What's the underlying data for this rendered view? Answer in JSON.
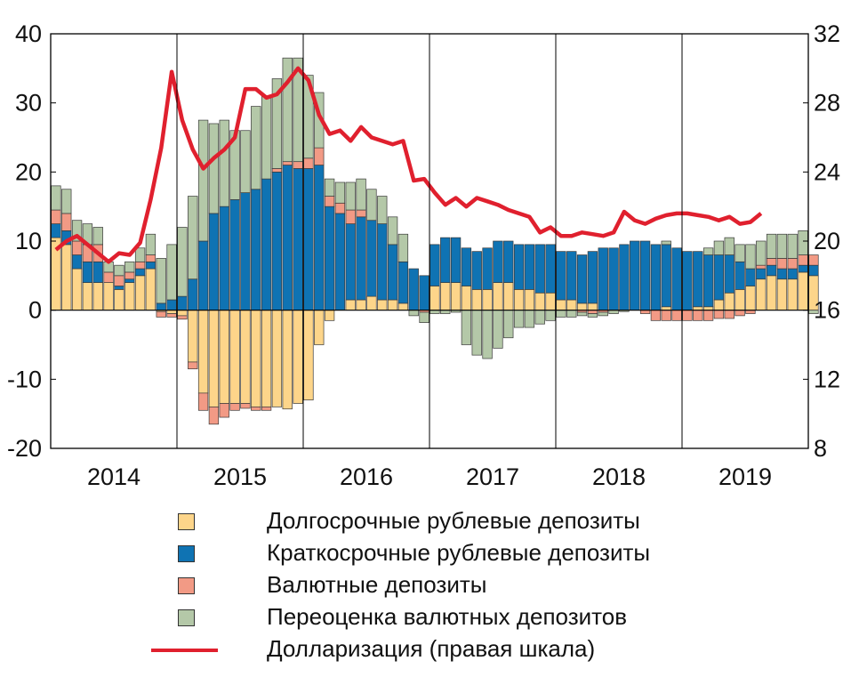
{
  "chart_data": {
    "type": "bar",
    "stacked": true,
    "title": "",
    "x_year_labels": [
      "2014",
      "2015",
      "2016",
      "2017",
      "2018",
      "2019"
    ],
    "left_axis": {
      "ylim": [
        -20,
        40
      ],
      "ticks": [
        "40",
        "30",
        "20",
        "10",
        "0",
        "-10",
        "-20"
      ]
    },
    "right_axis": {
      "ylim": [
        8,
        32
      ],
      "ticks": [
        "32",
        "28",
        "24",
        "20",
        "16",
        "12",
        "8"
      ]
    },
    "colors": {
      "long_rub": "#FDD58A",
      "short_rub": "#0F73B3",
      "fx": "#F29A85",
      "reval": "#B4C8A8",
      "line": "#E0202E"
    },
    "series": [
      {
        "name": "Долгосрочные рублевые депозиты",
        "key": "long_rub",
        "values": [
          10.5,
          9.5,
          6,
          4,
          4,
          4,
          3,
          4,
          5,
          6,
          -0.2,
          -0.5,
          -0.8,
          -7.5,
          -12,
          -14,
          -13.5,
          -13.5,
          -13.5,
          -14,
          -14,
          -14,
          -14.3,
          -13.5,
          -13,
          -5,
          -1.5,
          0,
          1.5,
          1.5,
          2,
          1.5,
          1.5,
          1,
          0,
          0,
          3.5,
          4,
          4,
          3.5,
          3,
          3,
          4,
          4,
          3,
          3,
          2.5,
          2.5,
          1.5,
          1.5,
          1,
          1,
          0,
          0,
          0,
          0,
          0,
          0,
          0.5,
          0,
          0,
          0.5,
          0.5,
          1.5,
          2.5,
          3,
          3.5,
          4.5,
          5,
          4.5,
          4.5,
          5.5,
          5
        ]
      },
      {
        "name": "Краткосрочные рублевые депозиты",
        "key": "short_rub",
        "values": [
          2,
          2,
          2,
          3,
          3,
          0,
          0.5,
          0.5,
          1,
          1,
          1,
          1.5,
          2,
          4.5,
          10,
          14,
          15,
          16,
          17,
          17.5,
          19,
          20,
          21,
          20.5,
          20.5,
          21,
          15,
          14,
          11,
          12,
          11,
          11,
          8,
          6,
          6,
          5,
          6,
          6.5,
          6.5,
          5.5,
          5.5,
          6,
          6,
          6,
          6.5,
          6.5,
          7,
          7,
          7,
          7,
          7,
          7.5,
          9,
          9,
          9.5,
          10,
          10,
          9.5,
          9,
          9,
          8.5,
          8,
          7.5,
          6.5,
          5.5,
          4,
          2.5,
          1.5,
          1.5,
          1.5,
          1.5,
          1,
          1.5
        ]
      },
      {
        "name": "Валютные депозиты",
        "key": "fx",
        "values": [
          2,
          2.5,
          2,
          2.5,
          2.5,
          1.5,
          1.5,
          1,
          1,
          1,
          -0.8,
          -0.5,
          -0.5,
          -1,
          -2.5,
          -2.5,
          -2,
          -1,
          -0.7,
          -0.5,
          -0.5,
          0.5,
          0.5,
          1,
          1.5,
          2.5,
          1.5,
          1.5,
          2,
          1,
          0,
          0,
          0,
          0,
          0,
          -0.3,
          0,
          0,
          0,
          0,
          0,
          0,
          0,
          0,
          0,
          0,
          0,
          0,
          0,
          0,
          -0.3,
          -0.5,
          -0.3,
          0,
          0,
          0,
          -0.5,
          -1.5,
          -1.5,
          -1.5,
          -1.5,
          -1.5,
          -1.5,
          -1.2,
          -1.2,
          -0.8,
          -0.5,
          0.5,
          1,
          1.5,
          1.5,
          1.5,
          1.5
        ]
      },
      {
        "name": "Переоценка валютных депозитов",
        "key": "reval",
        "values": [
          3.5,
          3.5,
          3,
          3,
          2.5,
          1.5,
          1.5,
          1.5,
          2,
          3,
          6.5,
          8,
          10,
          12,
          17.5,
          13,
          12.5,
          10,
          9,
          12,
          12,
          13,
          15,
          15,
          12,
          8,
          2.5,
          3,
          4,
          4.5,
          4.5,
          4,
          4,
          4,
          -0.8,
          -1.5,
          -0.5,
          -0.5,
          -0.3,
          -5,
          -6.5,
          -7,
          -5.5,
          -4,
          -2.5,
          -2.5,
          -2,
          -1.5,
          -1,
          -1,
          -0.5,
          -0.5,
          -0.5,
          -0.5,
          -0.2,
          0,
          0,
          0,
          0.5,
          0,
          0,
          0,
          1,
          2,
          2.5,
          2.5,
          3.5,
          3.5,
          3.5,
          3.5,
          3.5,
          3.5,
          -0.5
        ]
      }
    ],
    "line": {
      "name": "Долларизация (правая шкала)",
      "key": "line",
      "values": [
        19.5,
        20,
        20.3,
        19.8,
        19.3,
        18.8,
        19.3,
        19.2,
        19.9,
        22.4,
        25.4,
        29.8,
        27,
        25.3,
        24.2,
        24.8,
        25.3,
        26,
        28.8,
        28.8,
        28.3,
        28.5,
        29.2,
        30,
        29.3,
        27.3,
        26.2,
        26.4,
        25.8,
        26.6,
        26,
        25.8,
        25.6,
        25.8,
        23.5,
        23.6,
        22.8,
        22.1,
        22.5,
        22,
        22.5,
        22.3,
        22.1,
        21.8,
        21.6,
        21.4,
        20.5,
        20.8,
        20.3,
        20.3,
        20.5,
        20.4,
        20.3,
        20.5,
        21.7,
        21.2,
        21,
        21.3,
        21.5,
        21.6,
        21.6,
        21.5,
        21.4,
        21.2,
        21.4,
        21,
        21.1,
        21.6
      ]
    },
    "legend": [
      {
        "key": "long_rub",
        "label": "Долгосрочные рублевые депозиты",
        "kind": "box"
      },
      {
        "key": "short_rub",
        "label": "Краткосрочные рублевые депозиты",
        "kind": "box"
      },
      {
        "key": "fx",
        "label": "Валютные депозиты",
        "kind": "box"
      },
      {
        "key": "reval",
        "label": "Переоценка валютных депозитов",
        "kind": "box"
      },
      {
        "key": "line",
        "label": "Долларизация (правая шкала)",
        "kind": "line"
      }
    ]
  }
}
